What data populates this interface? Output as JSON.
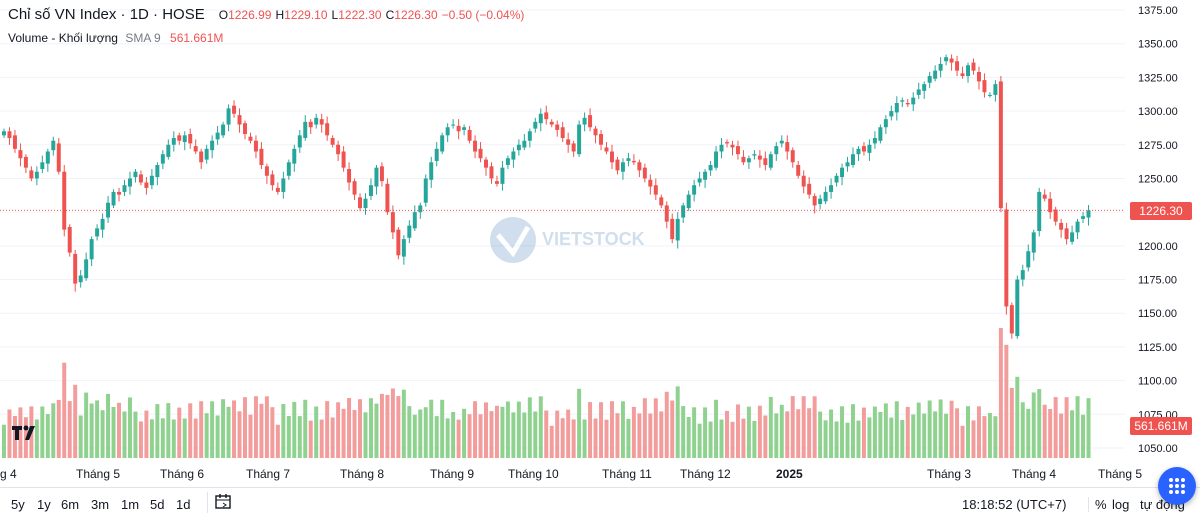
{
  "legend": {
    "symbol": "Chỉ số VN Index · 1D · HOSE",
    "open_label": "O",
    "open": "1226.99",
    "high_label": "H",
    "high": "1229.10",
    "low_label": "L",
    "low": "1222.30",
    "close_label": "C",
    "close": "1226.30",
    "change": "−0.50 (−0.04%)",
    "volume_label": "Volume - Khối lượng",
    "sma_label": "SMA 9",
    "volume_value": "561.661M"
  },
  "price_tag": "1226.30",
  "volume_tag": "561.661M",
  "watermark": "VIETSTOCK",
  "bottom": {
    "ranges": [
      "5y",
      "1y",
      "6m",
      "3m",
      "1m",
      "5d",
      "1d"
    ],
    "time": "18:18:52 (UTC+7)",
    "percent": "%",
    "log": "log",
    "auto": "tự động"
  },
  "colors": {
    "up": "#26a69a",
    "down": "#ef5350",
    "vol_up": "#8fd18f",
    "vol_down": "#f29c9c",
    "grid": "#f0f3fa"
  },
  "chart_data": {
    "type": "candlestick",
    "price_axis_ticks": [
      1375,
      1350,
      1325,
      1300,
      1275,
      1250,
      1225,
      1200,
      1175,
      1150,
      1125,
      1100,
      1075,
      1050
    ],
    "month_labels": [
      "g 4",
      "Tháng 5",
      "Tháng 6",
      "Tháng 7",
      "Tháng 8",
      "Tháng 9",
      "Tháng 10",
      "Tháng 11",
      "Tháng 12",
      "2025",
      "Tháng 3",
      "Tháng 4",
      "Tháng 5"
    ],
    "last_close": 1226.3,
    "close_series": [
      1285,
      1280,
      1272,
      1265,
      1258,
      1250,
      1255,
      1262,
      1270,
      1278,
      1255,
      1212,
      1195,
      1172,
      1178,
      1190,
      1205,
      1213,
      1220,
      1232,
      1240,
      1238,
      1245,
      1250,
      1255,
      1247,
      1243,
      1252,
      1260,
      1268,
      1275,
      1280,
      1278,
      1282,
      1276,
      1270,
      1262,
      1272,
      1278,
      1284,
      1290,
      1302,
      1298,
      1290,
      1283,
      1278,
      1270,
      1260,
      1252,
      1245,
      1240,
      1250,
      1262,
      1272,
      1282,
      1292,
      1288,
      1295,
      1290,
      1282,
      1275,
      1268,
      1258,
      1247,
      1238,
      1228,
      1235,
      1245,
      1258,
      1248,
      1225,
      1210,
      1193,
      1205,
      1215,
      1225,
      1230,
      1250,
      1262,
      1272,
      1282,
      1288,
      1290,
      1285,
      1288,
      1278,
      1270,
      1265,
      1258,
      1250,
      1246,
      1258,
      1265,
      1270,
      1275,
      1278,
      1285,
      1292,
      1298,
      1294,
      1290,
      1286,
      1280,
      1275,
      1270,
      1290,
      1295,
      1288,
      1282,
      1275,
      1270,
      1262,
      1256,
      1262,
      1265,
      1262,
      1256,
      1250,
      1244,
      1238,
      1230,
      1218,
      1205,
      1220,
      1230,
      1238,
      1245,
      1250,
      1255,
      1260,
      1270,
      1275,
      1276,
      1273,
      1268,
      1262,
      1265,
      1268,
      1264,
      1260,
      1268,
      1274,
      1278,
      1270,
      1262,
      1252,
      1244,
      1238,
      1230,
      1235,
      1240,
      1245,
      1252,
      1258,
      1262,
      1268,
      1272,
      1270,
      1275,
      1280,
      1288,
      1294,
      1300,
      1306,
      1308,
      1305,
      1310,
      1316,
      1320,
      1326,
      1330,
      1335,
      1340,
      1336,
      1330,
      1326,
      1334,
      1330,
      1322,
      1314,
      1312,
      1320,
      1228,
      1155,
      1135,
      1175,
      1182,
      1196,
      1210,
      1240,
      1235,
      1225,
      1218,
      1212,
      1205,
      1210,
      1218,
      1222,
      1226.3
    ],
    "volume_sma9": 561.661,
    "volume_unit": "M"
  }
}
